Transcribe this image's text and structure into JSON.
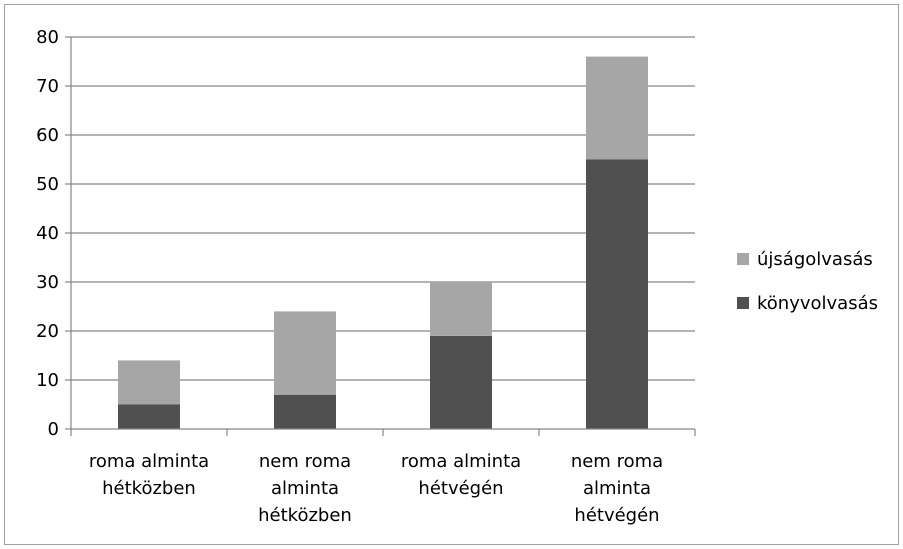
{
  "chart_data": {
    "type": "bar",
    "stacked": true,
    "categories": [
      [
        "roma alminta",
        "hétközben"
      ],
      [
        "nem roma",
        "alminta",
        "hétközben"
      ],
      [
        "roma alminta",
        "hétvégén"
      ],
      [
        "nem roma",
        "alminta",
        "hétvégén"
      ]
    ],
    "series": [
      {
        "name": "könyvolvasás",
        "color": "#505050",
        "values": [
          5,
          7,
          19,
          55
        ]
      },
      {
        "name": "újságolvasás",
        "color": "#a6a6a6",
        "values": [
          9,
          17,
          11,
          21
        ]
      }
    ],
    "ylim": [
      0,
      80
    ],
    "yticks": [
      0,
      10,
      20,
      30,
      40,
      50,
      60,
      70,
      80
    ],
    "grid": true,
    "legend": "right",
    "legend_order": [
      "újságolvasás",
      "könyvolvasás"
    ],
    "title": "",
    "xlabel": "",
    "ylabel": ""
  }
}
